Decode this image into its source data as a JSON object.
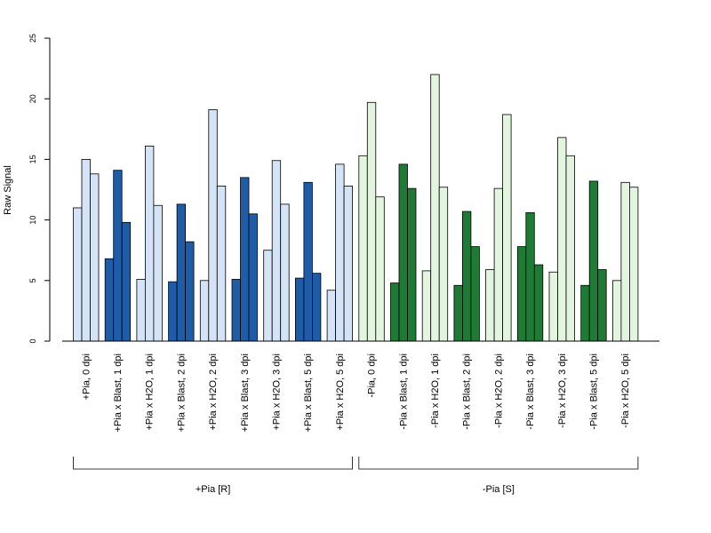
{
  "chart_data": {
    "type": "bar",
    "title": "",
    "xlabel": "",
    "ylabel": "Raw Signal",
    "ylim": [
      0,
      25
    ],
    "yticks": [
      0,
      5,
      10,
      15,
      20,
      25
    ],
    "grid": false,
    "categories": [
      "+Pia, 0 dpi",
      "+Pia x Blast, 1 dpi",
      "+Pia x H2O, 1 dpi",
      "+Pia x Blast, 2 dpi",
      "+Pia x H2O, 2 dpi",
      "+Pia x Blast, 3 dpi",
      "+Pia x H2O, 3 dpi",
      "+Pia x Blast, 5 dpi",
      "+Pia x H2O, 5 dpi",
      "-Pia, 0 dpi",
      "-Pia x Blast, 1 dpi",
      "-Pia x H2O, 1 dpi",
      "-Pia x Blast, 2 dpi",
      "-Pia x H2O, 2 dpi",
      "-Pia x Blast, 3 dpi",
      "-Pia x H2O, 3 dpi",
      "-Pia x Blast, 5 dpi",
      "-Pia x H2O, 5 dpi"
    ],
    "replicates": [
      [
        11.0,
        15.0,
        13.8
      ],
      [
        6.8,
        14.1,
        9.8
      ],
      [
        5.1,
        16.1,
        11.2
      ],
      [
        4.9,
        11.3,
        8.2
      ],
      [
        5.0,
        19.1,
        12.8
      ],
      [
        5.1,
        13.5,
        10.5
      ],
      [
        7.5,
        14.9,
        11.3
      ],
      [
        5.2,
        13.1,
        5.6
      ],
      [
        4.2,
        14.6,
        12.8
      ],
      [
        15.3,
        19.7,
        11.9
      ],
      [
        4.8,
        14.6,
        12.6
      ],
      [
        5.8,
        22.0,
        12.7
      ],
      [
        4.6,
        10.7,
        7.8
      ],
      [
        5.9,
        12.6,
        18.7
      ],
      [
        7.8,
        10.6,
        6.3
      ],
      [
        5.7,
        16.8,
        15.3
      ],
      [
        4.6,
        13.2,
        5.9
      ],
      [
        5.0,
        13.1,
        12.7
      ]
    ],
    "colors": [
      "#d4e3f5",
      "#1f5ca8",
      "#d4e3f5",
      "#1f5ca8",
      "#d4e3f5",
      "#1f5ca8",
      "#d4e3f5",
      "#1f5ca8",
      "#d4e3f5",
      "#e3f5df",
      "#1f7a36",
      "#e3f5df",
      "#1f7a36",
      "#e3f5df",
      "#1f7a36",
      "#e3f5df",
      "#1f7a36",
      "#e3f5df"
    ],
    "groups": [
      {
        "label": "+Pia [R]",
        "first": 0,
        "last": 8
      },
      {
        "label": "-Pia [S]",
        "first": 9,
        "last": 17
      }
    ]
  }
}
